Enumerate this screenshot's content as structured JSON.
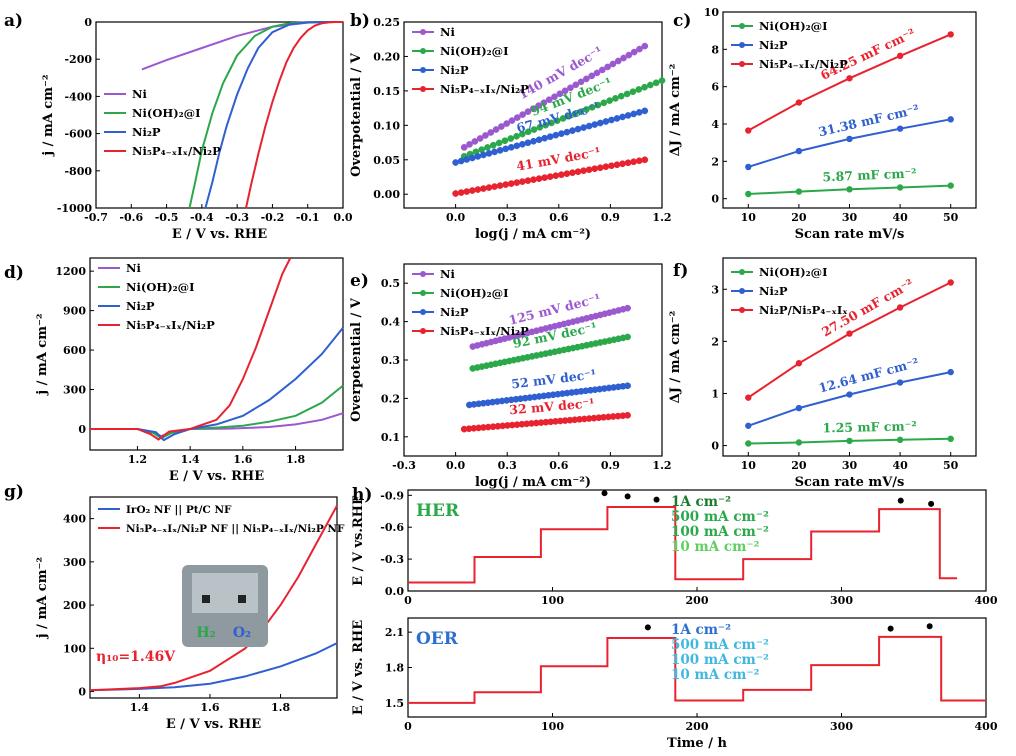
{
  "colors": {
    "purple": "#9b59d0",
    "green": "#2aa84a",
    "blue": "#2f5fd0",
    "red": "#e8232f",
    "lightgreen": "#5fcf5f",
    "cyan": "#3fb8e0",
    "dkgreen": "#1c7a2c",
    "darkblue": "#2c6fd0"
  },
  "chart_data": [
    {
      "id": "a",
      "type": "line",
      "panel_label": "a)",
      "xlabel": "E / V  vs. RHE",
      "ylabel": "j / mA cm⁻²",
      "xlim": [
        -0.7,
        0.0
      ],
      "ylim": [
        -1000,
        0
      ],
      "xticks": [
        -0.7,
        -0.6,
        -0.5,
        -0.4,
        -0.3,
        -0.2,
        -0.1,
        0.0
      ],
      "xticklabels": [
        "-0.7",
        "-0.6",
        "-0.5",
        "-0.4",
        "-0.3",
        "-0.2",
        "-0.1",
        "0.0"
      ],
      "yticks": [
        0,
        -200,
        -400,
        -600,
        -800,
        -1000
      ],
      "yticklabels": [
        "0",
        "-200",
        "-400",
        "-600",
        "-800",
        "-1000"
      ],
      "legend": {
        "placement": "middle-left"
      },
      "series": [
        {
          "name": "Ni",
          "color": "purple",
          "x": [
            -0.57,
            -0.5,
            -0.4,
            -0.3,
            -0.2,
            -0.1,
            -0.05,
            0.0
          ],
          "y": [
            -255,
            -205,
            -140,
            -75,
            -25,
            -3,
            0,
            0
          ]
        },
        {
          "name": "Ni(OH)₂@I",
          "color": "green",
          "x": [
            -0.435,
            -0.42,
            -0.4,
            -0.37,
            -0.34,
            -0.3,
            -0.25,
            -0.2,
            -0.15,
            -0.1,
            -0.05,
            0.0
          ],
          "y": [
            -1000,
            -870,
            -690,
            -490,
            -330,
            -180,
            -75,
            -25,
            -6,
            -1,
            0,
            0
          ]
        },
        {
          "name": "Ni₂P",
          "color": "blue",
          "x": [
            -0.39,
            -0.37,
            -0.35,
            -0.33,
            -0.3,
            -0.27,
            -0.24,
            -0.2,
            -0.15,
            -0.1,
            -0.05,
            0.0
          ],
          "y": [
            -1000,
            -860,
            -700,
            -560,
            -390,
            -250,
            -140,
            -55,
            -12,
            -2,
            0,
            0
          ]
        },
        {
          "name": "Ni₅P₄₋ₓIₓ/Ni₂P",
          "color": "red",
          "x": [
            -0.275,
            -0.26,
            -0.24,
            -0.22,
            -0.2,
            -0.18,
            -0.16,
            -0.14,
            -0.12,
            -0.1,
            -0.08,
            -0.06,
            -0.04,
            -0.02,
            0.0
          ],
          "y": [
            -1000,
            -870,
            -710,
            -560,
            -430,
            -315,
            -215,
            -140,
            -85,
            -45,
            -20,
            -7,
            -2,
            0,
            0
          ]
        }
      ]
    },
    {
      "id": "b",
      "type": "scatter",
      "panel_label": "b)",
      "xlabel": "log(j / mA cm⁻²)",
      "ylabel": "Overpotential / V",
      "xlim": [
        -0.3,
        1.2
      ],
      "ylim": [
        -0.02,
        0.25
      ],
      "xticks": [
        0.0,
        0.3,
        0.6,
        0.9,
        1.2
      ],
      "xticklabels": [
        "0.0",
        "0.3",
        "0.6",
        "0.9",
        "1.2"
      ],
      "yticks": [
        0.0,
        0.05,
        0.1,
        0.15,
        0.2,
        0.25
      ],
      "yticklabels": [
        "0.00",
        "0.05",
        "0.10",
        "0.15",
        "0.20",
        "0.25"
      ],
      "legend": {
        "placement": "top-left"
      },
      "series": [
        {
          "name": "Ni",
          "color": "purple",
          "x_start": 0.05,
          "x_end": 1.1,
          "y_start": 0.068,
          "y_end": 0.215,
          "label": "140 mV dec⁻¹"
        },
        {
          "name": "Ni(OH)₂@I",
          "color": "green",
          "x_start": 0.05,
          "x_end": 1.2,
          "y_start": 0.055,
          "y_end": 0.165,
          "label": "94 mV dec⁻¹"
        },
        {
          "name": "Ni₂P",
          "color": "blue",
          "x_start": 0.0,
          "x_end": 1.1,
          "y_start": 0.046,
          "y_end": 0.121,
          "label": "67 mV dec⁻¹"
        },
        {
          "name": "Ni₅P₄₋ₓIₓ/Ni₂P",
          "color": "red",
          "x_start": 0.0,
          "x_end": 1.1,
          "y_start": 0.001,
          "y_end": 0.05,
          "label": "41 mV dec⁻¹"
        }
      ]
    },
    {
      "id": "c",
      "type": "line",
      "panel_label": "c)",
      "xlabel": "Scan rate mV/s",
      "ylabel": "ΔJ / mA cm⁻²",
      "xlim": [
        5,
        55
      ],
      "ylim": [
        -0.5,
        10
      ],
      "xticks": [
        10,
        20,
        30,
        40,
        50
      ],
      "xticklabels": [
        "10",
        "20",
        "30",
        "40",
        "50"
      ],
      "yticks": [
        0,
        2,
        4,
        6,
        8,
        10
      ],
      "yticklabels": [
        "0",
        "2",
        "4",
        "6",
        "8",
        "10"
      ],
      "legend": {
        "placement": "top-left"
      },
      "series": [
        {
          "name": "Ni(OH)₂@I",
          "color": "green",
          "x": [
            10,
            20,
            30,
            40,
            50
          ],
          "y": [
            0.25,
            0.38,
            0.5,
            0.6,
            0.7
          ],
          "label": "5.87 mF cm⁻²"
        },
        {
          "name": "Ni₂P",
          "color": "blue",
          "x": [
            10,
            20,
            30,
            40,
            50
          ],
          "y": [
            1.7,
            2.55,
            3.2,
            3.75,
            4.25
          ],
          "label": "31.38 mF cm⁻²"
        },
        {
          "name": "Ni₅P₄₋ₓIₓ/Ni₂P",
          "color": "red",
          "x": [
            10,
            20,
            30,
            40,
            50
          ],
          "y": [
            3.65,
            5.15,
            6.45,
            7.65,
            8.8
          ],
          "label": "64.25 mF cm⁻²"
        }
      ]
    },
    {
      "id": "d",
      "type": "line",
      "panel_label": "d)",
      "xlabel": "E / V  vs. RHE",
      "ylabel": "j / mA cm⁻²",
      "xlim": [
        1.02,
        1.98
      ],
      "ylim": [
        -160,
        1300
      ],
      "xticks": [
        1.2,
        1.4,
        1.6,
        1.8
      ],
      "xticklabels": [
        "1.2",
        "1.4",
        "1.6",
        "1.8"
      ],
      "yticks": [
        0,
        300,
        600,
        900,
        1200
      ],
      "yticklabels": [
        "0",
        "300",
        "600",
        "900",
        "1200"
      ],
      "legend": {
        "placement": "top-left"
      },
      "series": [
        {
          "name": "Ni",
          "color": "purple",
          "x": [
            1.02,
            1.2,
            1.26,
            1.29,
            1.33,
            1.4,
            1.55,
            1.7,
            1.8,
            1.9,
            1.98
          ],
          "y": [
            0,
            0,
            -25,
            -55,
            -20,
            0,
            3,
            15,
            35,
            70,
            120
          ]
        },
        {
          "name": "Ni(OH)₂@I",
          "color": "green",
          "x": [
            1.02,
            1.2,
            1.26,
            1.29,
            1.33,
            1.4,
            1.5,
            1.6,
            1.7,
            1.8,
            1.9,
            1.98
          ],
          "y": [
            0,
            0,
            -30,
            -70,
            -30,
            0,
            10,
            25,
            55,
            100,
            200,
            330
          ]
        },
        {
          "name": "Ni₂P",
          "color": "blue",
          "x": [
            1.02,
            1.2,
            1.27,
            1.3,
            1.34,
            1.4,
            1.5,
            1.6,
            1.7,
            1.8,
            1.9,
            1.98
          ],
          "y": [
            0,
            0,
            -25,
            -85,
            -40,
            0,
            35,
            100,
            220,
            380,
            570,
            770
          ]
        },
        {
          "name": "Ni₅P₄₋ₓIₓ/Ni₂P",
          "color": "red",
          "x": [
            1.02,
            1.2,
            1.25,
            1.28,
            1.32,
            1.4,
            1.5,
            1.55,
            1.6,
            1.65,
            1.7,
            1.75,
            1.78
          ],
          "y": [
            0,
            0,
            -40,
            -80,
            -20,
            0,
            70,
            180,
            380,
            620,
            900,
            1180,
            1300
          ]
        }
      ]
    },
    {
      "id": "e",
      "type": "scatter",
      "panel_label": "e)",
      "xlabel": "log(j / mA cm⁻²)",
      "ylabel": "Overpotential / V",
      "xlim": [
        -0.3,
        1.2
      ],
      "ylim": [
        0.05,
        0.55
      ],
      "xticks": [
        -0.3,
        0.0,
        0.3,
        0.6,
        0.9,
        1.2
      ],
      "xticklabels": [
        "-0.3",
        "0.0",
        "0.3",
        "0.6",
        "0.9",
        "1.2"
      ],
      "yticks": [
        0.1,
        0.2,
        0.3,
        0.4,
        0.5
      ],
      "yticklabels": [
        "0.1",
        "0.2",
        "0.3",
        "0.4",
        "0.5"
      ],
      "legend": {
        "placement": "top-left"
      },
      "series": [
        {
          "name": "Ni",
          "color": "purple",
          "x_start": 0.1,
          "x_end": 1.0,
          "y_start": 0.335,
          "y_end": 0.435,
          "label": "125 mV dec⁻¹"
        },
        {
          "name": "Ni(OH)₂@I",
          "color": "green",
          "x_start": 0.1,
          "x_end": 1.0,
          "y_start": 0.278,
          "y_end": 0.36,
          "label": "92 mV dec⁻¹"
        },
        {
          "name": "Ni₂P",
          "color": "blue",
          "x_start": 0.08,
          "x_end": 1.0,
          "y_start": 0.183,
          "y_end": 0.233,
          "label": "52 mV dec⁻¹"
        },
        {
          "name": "Ni₅P₄₋ₓIₓ/Ni₂P",
          "color": "red",
          "x_start": 0.05,
          "x_end": 1.0,
          "y_start": 0.12,
          "y_end": 0.156,
          "label": "32 mV dec⁻¹"
        }
      ]
    },
    {
      "id": "f",
      "type": "line",
      "panel_label": "f)",
      "xlabel": "Scan rate mV/s",
      "ylabel": "ΔJ / mA cm⁻²",
      "xlim": [
        5,
        55
      ],
      "ylim": [
        -0.2,
        3.6
      ],
      "xticks": [
        10,
        20,
        30,
        40,
        50
      ],
      "xticklabels": [
        "10",
        "20",
        "30",
        "40",
        "50"
      ],
      "yticks": [
        0,
        1,
        2,
        3
      ],
      "yticklabels": [
        "0",
        "1",
        "2",
        "3"
      ],
      "legend": {
        "placement": "top-left"
      },
      "series": [
        {
          "name": "Ni(OH)₂@I",
          "color": "green",
          "x": [
            10,
            20,
            30,
            40,
            50
          ],
          "y": [
            0.04,
            0.06,
            0.09,
            0.11,
            0.13
          ],
          "label": "1.25 mF cm⁻²"
        },
        {
          "name": "Ni₂P",
          "color": "blue",
          "x": [
            10,
            20,
            30,
            40,
            50
          ],
          "y": [
            0.38,
            0.72,
            0.98,
            1.21,
            1.41
          ],
          "label": "12.64 mF cm⁻²"
        },
        {
          "name": "Ni₂P/Ni₅P₄₋ₓIₓ",
          "color": "red",
          "x": [
            10,
            20,
            30,
            40,
            50
          ],
          "y": [
            0.92,
            1.58,
            2.15,
            2.65,
            3.13
          ],
          "label": "27.50 mF cm⁻²"
        }
      ]
    },
    {
      "id": "g",
      "type": "line",
      "panel_label": "g)",
      "xlabel": "E / V  vs. RHE",
      "ylabel": "j / mA cm⁻²",
      "xlim": [
        1.26,
        1.96
      ],
      "ylim": [
        -15,
        450
      ],
      "xticks": [
        1.4,
        1.6,
        1.8
      ],
      "xticklabels": [
        "1.4",
        "1.6",
        "1.8"
      ],
      "yticks": [
        0,
        100,
        200,
        300,
        400
      ],
      "yticklabels": [
        "0",
        "100",
        "200",
        "300",
        "400"
      ],
      "legend": {
        "placement": "top-left"
      },
      "annotation": "η₁₀=1.46V",
      "inset_labels": [
        "H₂",
        "O₂"
      ],
      "series": [
        {
          "name": "IrO₂ NF || Pt/C NF",
          "color": "blue",
          "x": [
            1.26,
            1.4,
            1.5,
            1.6,
            1.7,
            1.8,
            1.9,
            1.96
          ],
          "y": [
            3,
            6,
            10,
            18,
            35,
            58,
            88,
            112
          ]
        },
        {
          "name": "Ni₅P₄₋ₓIₓ/Ni₂P NF || Ni₅P₄₋ₓIₓ/Ni₂P NF",
          "color": "red",
          "x": [
            1.26,
            1.4,
            1.46,
            1.5,
            1.6,
            1.7,
            1.75,
            1.8,
            1.85,
            1.9,
            1.96
          ],
          "y": [
            3,
            8,
            12,
            20,
            48,
            100,
            145,
            200,
            265,
            340,
            430
          ]
        }
      ]
    },
    {
      "id": "h1",
      "type": "line",
      "panel_label": "h)",
      "title": "HER",
      "ylabel": "E / V vs.RHE",
      "xlim": [
        0,
        400
      ],
      "ylim": [
        0.0,
        -0.95
      ],
      "inverted": true,
      "xticks": [
        0,
        100,
        200,
        300,
        400
      ],
      "xticklabels": [
        "0",
        "100",
        "200",
        "300",
        "400"
      ],
      "yticks": [
        -0.9,
        -0.6,
        -0.3,
        0.0
      ],
      "yticklabels": [
        "-0.9",
        "-0.6",
        "-0.3",
        "0.0"
      ],
      "steps": [
        {
          "x0": 0,
          "x1": 46,
          "y": -0.08
        },
        {
          "x0": 46,
          "x1": 92,
          "y": -0.32
        },
        {
          "x0": 92,
          "x1": 138,
          "y": -0.58
        },
        {
          "x0": 138,
          "x1": 185,
          "y": -0.79
        },
        {
          "x0": 185,
          "x1": 232,
          "y": -0.11
        },
        {
          "x0": 232,
          "x1": 279,
          "y": -0.3
        },
        {
          "x0": 279,
          "x1": 326,
          "y": -0.56
        },
        {
          "x0": 326,
          "x1": 368,
          "y": -0.77
        },
        {
          "x0": 368,
          "x1": 380,
          "y": -0.12
        }
      ],
      "dots": [
        {
          "x": 136,
          "y": -0.92
        },
        {
          "x": 152,
          "y": -0.89
        },
        {
          "x": 172,
          "y": -0.86
        },
        {
          "x": 341,
          "y": -0.85
        },
        {
          "x": 362,
          "y": -0.82
        }
      ],
      "legend_lines": [
        {
          "text": "1A cm⁻²",
          "color": "dkgreen"
        },
        {
          "text": "500 mA cm⁻²",
          "color": "green"
        },
        {
          "text": "100 mA cm⁻²",
          "color": "green"
        },
        {
          "text": "10 mA cm⁻²",
          "color": "lightgreen"
        }
      ]
    },
    {
      "id": "h2",
      "type": "line",
      "title": "OER",
      "xlabel": "Time / h",
      "ylabel": "E / V vs. RHE",
      "xlim": [
        0,
        400
      ],
      "ylim": [
        1.38,
        2.22
      ],
      "xticks": [
        0,
        100,
        200,
        300,
        400
      ],
      "xticklabels": [
        "0",
        "100",
        "200",
        "300",
        "400"
      ],
      "yticks": [
        1.5,
        1.8,
        2.1
      ],
      "yticklabels": [
        "1.5",
        "1.8",
        "2.1"
      ],
      "steps": [
        {
          "x0": 0,
          "x1": 46,
          "y": 1.5
        },
        {
          "x0": 46,
          "x1": 92,
          "y": 1.59
        },
        {
          "x0": 92,
          "x1": 138,
          "y": 1.81
        },
        {
          "x0": 138,
          "x1": 185,
          "y": 2.05
        },
        {
          "x0": 185,
          "x1": 232,
          "y": 1.52
        },
        {
          "x0": 232,
          "x1": 279,
          "y": 1.61
        },
        {
          "x0": 279,
          "x1": 326,
          "y": 1.82
        },
        {
          "x0": 326,
          "x1": 369,
          "y": 2.06
        },
        {
          "x0": 369,
          "x1": 400,
          "y": 1.52
        }
      ],
      "dots": [
        {
          "x": 166,
          "y": 2.14
        },
        {
          "x": 334,
          "y": 2.13
        },
        {
          "x": 361,
          "y": 2.15
        }
      ],
      "legend_lines": [
        {
          "text": "1A cm⁻²",
          "color": "darkblue"
        },
        {
          "text": "500 mA cm⁻²",
          "color": "cyan"
        },
        {
          "text": "100 mA cm⁻²",
          "color": "cyan"
        },
        {
          "text": "10 mA cm⁻²",
          "color": "cyan"
        }
      ]
    }
  ]
}
